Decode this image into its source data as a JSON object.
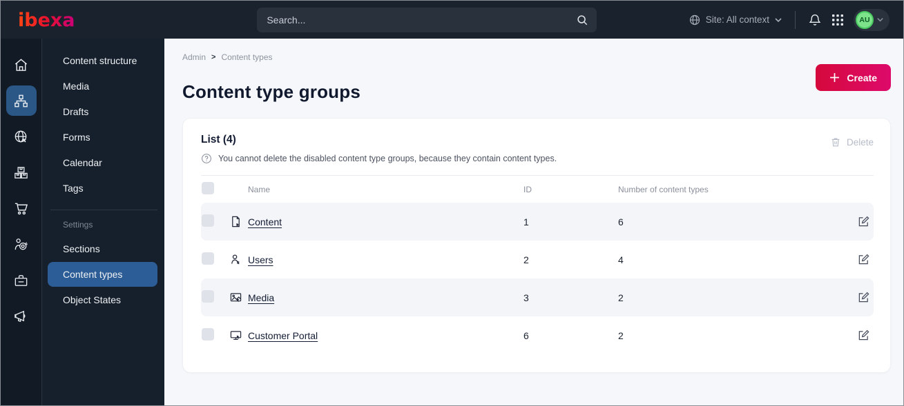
{
  "topbar": {
    "logo_text": "ibexa",
    "search_placeholder": "Search...",
    "site_context_label": "Site: All context",
    "avatar_initials": "AU",
    "icons": [
      "search-icon",
      "globe-icon",
      "chevron-down-icon",
      "bell-icon",
      "app-grid-icon"
    ]
  },
  "sidebar": {
    "rail_icons": [
      "home-icon",
      "content-structure-icon",
      "site-icon",
      "commerce-icon",
      "cart-icon",
      "customer-icon",
      "toolbox-icon",
      "megaphone-icon"
    ],
    "rail_active_icon": "content-structure-icon",
    "menu": {
      "items": [
        "Content structure",
        "Media",
        "Drafts",
        "Forms",
        "Calendar",
        "Tags"
      ],
      "settings_header": "Settings",
      "settings_items": [
        "Sections",
        "Content types",
        "Object States"
      ],
      "active": "Content types"
    }
  },
  "breadcrumb": {
    "items": [
      "Admin",
      "Content types"
    ],
    "separator": ">"
  },
  "page": {
    "title": "Content type groups",
    "create_label": "Create"
  },
  "list": {
    "heading": "List (4)",
    "help_text": "You cannot delete the disabled content type groups, because they contain content types.",
    "delete_label": "Delete",
    "table": {
      "columns": [
        "Name",
        "ID",
        "Number of content types"
      ],
      "rows": [
        {
          "icon": "file-icon",
          "name": "Content",
          "id": "1",
          "count": "6"
        },
        {
          "icon": "user-icon",
          "name": "Users",
          "id": "2",
          "count": "4"
        },
        {
          "icon": "image-icon",
          "name": "Media",
          "id": "3",
          "count": "2"
        },
        {
          "icon": "monitor-icon",
          "name": "Customer Portal",
          "id": "6",
          "count": "2"
        }
      ]
    }
  },
  "colors": {
    "topbar_bg": "#1a222e",
    "rail_bg": "#121a25",
    "menu_bg": "#16202c",
    "active_blue": "#2d5d96",
    "accent_gradient_start": "#d6093c",
    "accent_gradient_end": "#dd0a6b",
    "logo_gradient": [
      "#ff4713",
      "#e8112d",
      "#c9007a"
    ],
    "avatar_green": "#7ce38b",
    "content_bg": "#f5f7fa",
    "row_alt_bg": "#f4f5f8"
  }
}
